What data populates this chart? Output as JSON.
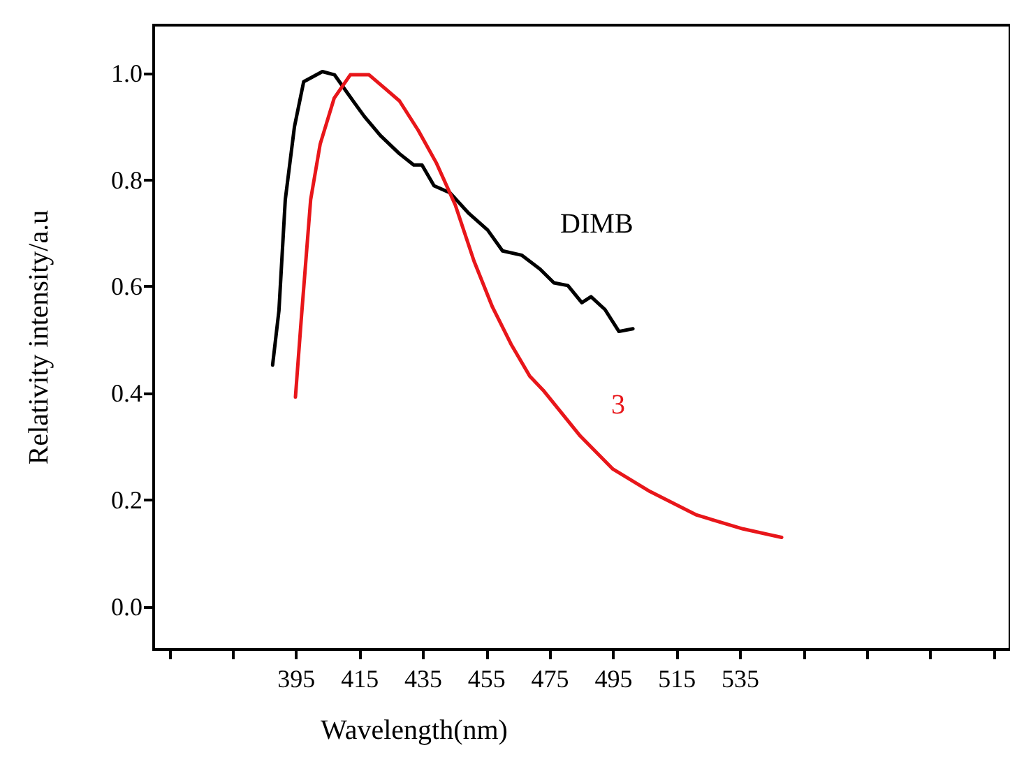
{
  "chart_data": {
    "type": "line",
    "xlabel": "Wavelength(nm)",
    "ylabel": "Relativity intensity/a.u",
    "xlim": [
      350,
      620
    ],
    "ylim": [
      -0.08,
      1.09
    ],
    "xticks": [
      {
        "value": 355,
        "label": null
      },
      {
        "value": 375,
        "label": null
      },
      395,
      415,
      435,
      455,
      475,
      495,
      515,
      535,
      {
        "value": 555,
        "label": null
      },
      {
        "value": 575,
        "label": null
      },
      {
        "value": 595,
        "label": null
      },
      {
        "value": 615,
        "label": null
      }
    ],
    "yticks": [
      {
        "value": 0,
        "label": "0.0"
      },
      {
        "value": 0.2,
        "label": "0.2"
      },
      {
        "value": 0.4,
        "label": "0.4"
      },
      {
        "value": 0.6,
        "label": "0.6"
      },
      {
        "value": 0.8,
        "label": "0.8"
      },
      {
        "value": 1,
        "label": "1.0"
      }
    ],
    "grid": false,
    "legend": false,
    "marker": "none",
    "line_style": "solid",
    "series": [
      {
        "name": "DIMB",
        "color": "#000000",
        "x": [
          387.5,
          389.5,
          391.5,
          394.4,
          397.3,
          403.2,
          407,
          411.3,
          416.4,
          421.5,
          427.5,
          432,
          434.6,
          438.4,
          443.4,
          449.4,
          455.3,
          460,
          466,
          471.8,
          476.2,
          480.6,
          485,
          487.9,
          492.3,
          496.7,
          501.1
        ],
        "values": [
          0.453,
          0.555,
          0.763,
          0.9,
          0.984,
          1.003,
          0.997,
          0.961,
          0.919,
          0.883,
          0.849,
          0.828,
          0.828,
          0.789,
          0.776,
          0.737,
          0.706,
          0.667,
          0.659,
          0.633,
          0.607,
          0.602,
          0.57,
          0.581,
          0.557,
          0.516,
          0.521
        ]
      },
      {
        "name": "3",
        "color": "#e8161a",
        "x": [
          394.7,
          396.6,
          399.5,
          402.5,
          406.9,
          412,
          417.9,
          423,
          427.5,
          433.4,
          439.2,
          445.1,
          451,
          456.8,
          462.7,
          468.6,
          472.8,
          484.5,
          494.8,
          506.5,
          521.2,
          535.8,
          548
        ],
        "values": [
          0.393,
          0.544,
          0.763,
          0.867,
          0.953,
          0.997,
          0.997,
          0.971,
          0.948,
          0.893,
          0.831,
          0.753,
          0.648,
          0.562,
          0.492,
          0.432,
          0.406,
          0.32,
          0.258,
          0.216,
          0.172,
          0.146,
          0.13
        ]
      }
    ]
  }
}
